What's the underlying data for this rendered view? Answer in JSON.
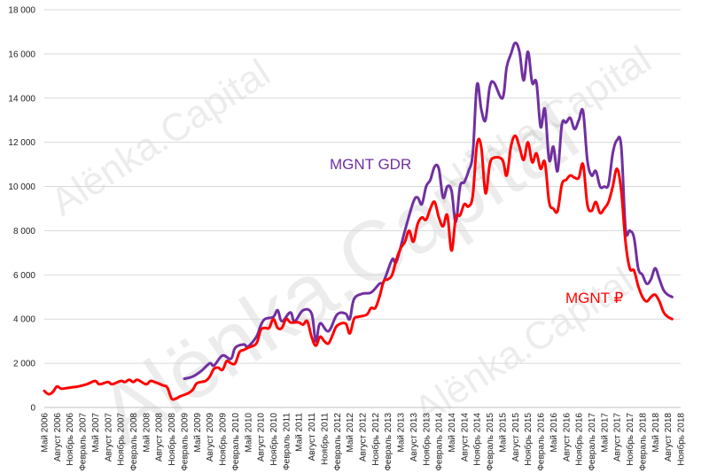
{
  "chart_data": {
    "type": "line",
    "ylim": [
      0,
      18000
    ],
    "yticks": [
      0,
      2000,
      4000,
      6000,
      8000,
      10000,
      12000,
      14000,
      16000,
      18000
    ],
    "ytick_labels": [
      "0",
      "2 000",
      "4 000",
      "6 000",
      "8 000",
      "10 000",
      "12 000",
      "14 000",
      "16 000",
      "18 000"
    ],
    "grid": true,
    "x_start": "2006-05",
    "x_end": "2018-11",
    "xtick_labels": [
      "Май 2006",
      "Август 2006",
      "Ноябрь 2006",
      "Февраль 2007",
      "Май 2007",
      "Август 2007",
      "Ноябрь 2007",
      "Февраль 2008",
      "Май 2008",
      "Август 2008",
      "Ноябрь 2008",
      "Февраль 2009",
      "Май 2009",
      "Август 2009",
      "Ноябрь 2009",
      "Февраль 2010",
      "Май 2010",
      "Август 2010",
      "Ноябрь 2010",
      "Февраль 2011",
      "Май 2011",
      "Август 2011",
      "Ноябрь 2011",
      "Февраль 2012",
      "Май 2012",
      "Август 2012",
      "Ноябрь 2012",
      "Февраль 2013",
      "Май 2013",
      "Август 2013",
      "Ноябрь 2013",
      "Февраль 2014",
      "Май 2014",
      "Август 2014",
      "Ноябрь 2014",
      "Февраль 2015",
      "Май 2015",
      "Август 2015",
      "Ноябрь 2015",
      "Февраль 2016",
      "Май 2016",
      "Август 2016",
      "Ноябрь 2016",
      "Февраль 2017",
      "Май 2017",
      "Август 2017",
      "Ноябрь 2017",
      "Февраль 2018",
      "Май 2018",
      "Август 2018",
      "Ноябрь 2018"
    ],
    "series": [
      {
        "name": "MGNT GDR",
        "color": "#7030a0",
        "points": [
          [
            "2009-02",
            1300
          ],
          [
            "2009-04",
            1400
          ],
          [
            "2009-06",
            1650
          ],
          [
            "2009-08",
            2000
          ],
          [
            "2009-09",
            1900
          ],
          [
            "2009-11",
            2350
          ],
          [
            "2010-01",
            2200
          ],
          [
            "2010-02",
            2700
          ],
          [
            "2010-04",
            2850
          ],
          [
            "2010-05",
            2750
          ],
          [
            "2010-07",
            3200
          ],
          [
            "2010-08",
            3700
          ],
          [
            "2010-09",
            4000
          ],
          [
            "2010-11",
            4100
          ],
          [
            "2010-12",
            4400
          ],
          [
            "2011-01",
            3900
          ],
          [
            "2011-03",
            4300
          ],
          [
            "2011-04",
            3900
          ],
          [
            "2011-06",
            4400
          ],
          [
            "2011-08",
            4250
          ],
          [
            "2011-09",
            3000
          ],
          [
            "2011-10",
            3800
          ],
          [
            "2011-12",
            3450
          ],
          [
            "2012-02",
            4200
          ],
          [
            "2012-04",
            4250
          ],
          [
            "2012-05",
            4000
          ],
          [
            "2012-06",
            4900
          ],
          [
            "2012-08",
            5150
          ],
          [
            "2012-10",
            5200
          ],
          [
            "2012-12",
            5600
          ],
          [
            "2013-01",
            5700
          ],
          [
            "2013-03",
            6700
          ],
          [
            "2013-04",
            6600
          ],
          [
            "2013-06",
            8000
          ],
          [
            "2013-08",
            9300
          ],
          [
            "2013-09",
            9500
          ],
          [
            "2013-10",
            9200
          ],
          [
            "2013-11",
            10000
          ],
          [
            "2013-12",
            10300
          ],
          [
            "2014-01",
            10900
          ],
          [
            "2014-02",
            10800
          ],
          [
            "2014-03",
            9500
          ],
          [
            "2014-04",
            10000
          ],
          [
            "2014-05",
            9800
          ],
          [
            "2014-06",
            8400
          ],
          [
            "2014-07",
            10000
          ],
          [
            "2014-08",
            10200
          ],
          [
            "2014-09",
            10700
          ],
          [
            "2014-10",
            11500
          ],
          [
            "2014-11",
            14600
          ],
          [
            "2014-12",
            13500
          ],
          [
            "2015-01",
            13000
          ],
          [
            "2015-02",
            14500
          ],
          [
            "2015-03",
            14700
          ],
          [
            "2015-05",
            14000
          ],
          [
            "2015-06",
            15400
          ],
          [
            "2015-07",
            16000
          ],
          [
            "2015-08",
            16500
          ],
          [
            "2015-09",
            16100
          ],
          [
            "2015-10",
            14800
          ],
          [
            "2015-11",
            16100
          ],
          [
            "2015-12",
            14700
          ],
          [
            "2016-01",
            14700
          ],
          [
            "2016-02",
            12700
          ],
          [
            "2016-03",
            13500
          ],
          [
            "2016-04",
            11200
          ],
          [
            "2016-05",
            11800
          ],
          [
            "2016-06",
            10700
          ],
          [
            "2016-07",
            12800
          ],
          [
            "2016-08",
            12900
          ],
          [
            "2016-09",
            13100
          ],
          [
            "2016-10",
            12600
          ],
          [
            "2016-11",
            13000
          ],
          [
            "2016-12",
            13400
          ],
          [
            "2017-01",
            11200
          ],
          [
            "2017-02",
            10500
          ],
          [
            "2017-03",
            10700
          ],
          [
            "2017-04",
            10000
          ],
          [
            "2017-05",
            10000
          ],
          [
            "2017-06",
            10100
          ],
          [
            "2017-07",
            11500
          ],
          [
            "2017-08",
            12100
          ],
          [
            "2017-09",
            11800
          ],
          [
            "2017-10",
            8100
          ],
          [
            "2017-11",
            8000
          ],
          [
            "2017-12",
            7700
          ],
          [
            "2018-01",
            6300
          ],
          [
            "2018-02",
            6000
          ],
          [
            "2018-03",
            5600
          ],
          [
            "2018-04",
            5800
          ],
          [
            "2018-05",
            6300
          ],
          [
            "2018-06",
            5800
          ],
          [
            "2018-07",
            5300
          ],
          [
            "2018-08",
            5100
          ],
          [
            "2018-09",
            5000
          ]
        ]
      },
      {
        "name": "MGNT ₽",
        "color": "#ff0000",
        "points": [
          [
            "2006-05",
            750
          ],
          [
            "2006-06",
            600
          ],
          [
            "2006-07",
            700
          ],
          [
            "2006-08",
            950
          ],
          [
            "2006-09",
            850
          ],
          [
            "2006-11",
            900
          ],
          [
            "2007-01",
            950
          ],
          [
            "2007-03",
            1050
          ],
          [
            "2007-05",
            1200
          ],
          [
            "2007-06",
            1050
          ],
          [
            "2007-08",
            1150
          ],
          [
            "2007-09",
            1050
          ],
          [
            "2007-11",
            1200
          ],
          [
            "2007-12",
            1150
          ],
          [
            "2008-01",
            1250
          ],
          [
            "2008-02",
            1150
          ],
          [
            "2008-03",
            1250
          ],
          [
            "2008-05",
            1050
          ],
          [
            "2008-06",
            1200
          ],
          [
            "2008-07",
            1150
          ],
          [
            "2008-09",
            1000
          ],
          [
            "2008-10",
            900
          ],
          [
            "2008-11",
            400
          ],
          [
            "2008-12",
            400
          ],
          [
            "2009-01",
            500
          ],
          [
            "2009-03",
            650
          ],
          [
            "2009-04",
            800
          ],
          [
            "2009-05",
            1100
          ],
          [
            "2009-07",
            1200
          ],
          [
            "2009-08",
            1400
          ],
          [
            "2009-09",
            1750
          ],
          [
            "2009-10",
            1800
          ],
          [
            "2009-11",
            1700
          ],
          [
            "2009-12",
            2100
          ],
          [
            "2010-01",
            2000
          ],
          [
            "2010-02",
            2000
          ],
          [
            "2010-03",
            2500
          ],
          [
            "2010-04",
            2600
          ],
          [
            "2010-05",
            2700
          ],
          [
            "2010-07",
            2900
          ],
          [
            "2010-08",
            3500
          ],
          [
            "2010-09",
            3600
          ],
          [
            "2010-10",
            3600
          ],
          [
            "2010-11",
            4000
          ],
          [
            "2010-12",
            3600
          ],
          [
            "2011-01",
            3600
          ],
          [
            "2011-02",
            4000
          ],
          [
            "2011-03",
            3850
          ],
          [
            "2011-04",
            3850
          ],
          [
            "2011-05",
            3850
          ],
          [
            "2011-06",
            3750
          ],
          [
            "2011-07",
            3900
          ],
          [
            "2011-08",
            3200
          ],
          [
            "2011-09",
            2800
          ],
          [
            "2011-10",
            3200
          ],
          [
            "2011-11",
            3000
          ],
          [
            "2011-12",
            2900
          ],
          [
            "2012-01",
            3300
          ],
          [
            "2012-02",
            3700
          ],
          [
            "2012-04",
            3800
          ],
          [
            "2012-05",
            3350
          ],
          [
            "2012-06",
            4000
          ],
          [
            "2012-07",
            4100
          ],
          [
            "2012-09",
            4200
          ],
          [
            "2012-10",
            4500
          ],
          [
            "2012-11",
            4500
          ],
          [
            "2012-12",
            5000
          ],
          [
            "2013-01",
            5700
          ],
          [
            "2013-02",
            5800
          ],
          [
            "2013-03",
            6000
          ],
          [
            "2013-04",
            6700
          ],
          [
            "2013-05",
            7200
          ],
          [
            "2013-06",
            7500
          ],
          [
            "2013-07",
            8000
          ],
          [
            "2013-08",
            7500
          ],
          [
            "2013-09",
            8300
          ],
          [
            "2013-10",
            8600
          ],
          [
            "2013-11",
            8500
          ],
          [
            "2013-12",
            9000
          ],
          [
            "2014-01",
            9300
          ],
          [
            "2014-02",
            8600
          ],
          [
            "2014-03",
            8200
          ],
          [
            "2014-04",
            8700
          ],
          [
            "2014-05",
            7100
          ],
          [
            "2014-06",
            8600
          ],
          [
            "2014-07",
            8700
          ],
          [
            "2014-08",
            9200
          ],
          [
            "2014-09",
            9100
          ],
          [
            "2014-10",
            9600
          ],
          [
            "2014-11",
            11900
          ],
          [
            "2014-12",
            11800
          ],
          [
            "2015-01",
            9700
          ],
          [
            "2015-02",
            11000
          ],
          [
            "2015-03",
            11300
          ],
          [
            "2015-05",
            11200
          ],
          [
            "2015-06",
            10500
          ],
          [
            "2015-07",
            11800
          ],
          [
            "2015-08",
            12300
          ],
          [
            "2015-09",
            11800
          ],
          [
            "2015-10",
            11200
          ],
          [
            "2015-11",
            12000
          ],
          [
            "2015-12",
            11100
          ],
          [
            "2016-01",
            11500
          ],
          [
            "2016-02",
            10800
          ],
          [
            "2016-03",
            11100
          ],
          [
            "2016-04",
            9300
          ],
          [
            "2016-05",
            9000
          ],
          [
            "2016-06",
            8900
          ],
          [
            "2016-07",
            10100
          ],
          [
            "2016-08",
            10300
          ],
          [
            "2016-09",
            10500
          ],
          [
            "2016-10",
            10400
          ],
          [
            "2016-11",
            10400
          ],
          [
            "2016-12",
            11000
          ],
          [
            "2017-01",
            9200
          ],
          [
            "2017-02",
            8900
          ],
          [
            "2017-03",
            9300
          ],
          [
            "2017-04",
            8800
          ],
          [
            "2017-05",
            9000
          ],
          [
            "2017-06",
            9300
          ],
          [
            "2017-07",
            10000
          ],
          [
            "2017-08",
            10800
          ],
          [
            "2017-09",
            9800
          ],
          [
            "2017-10",
            7500
          ],
          [
            "2017-11",
            6300
          ],
          [
            "2017-12",
            6200
          ],
          [
            "2018-01",
            5500
          ],
          [
            "2018-02",
            5000
          ],
          [
            "2018-03",
            4800
          ],
          [
            "2018-04",
            5000
          ],
          [
            "2018-05",
            5100
          ],
          [
            "2018-06",
            4800
          ],
          [
            "2018-07",
            4300
          ],
          [
            "2018-08",
            4100
          ],
          [
            "2018-09",
            4000
          ]
        ]
      }
    ]
  },
  "watermark_text": "Alёnka.Capital"
}
